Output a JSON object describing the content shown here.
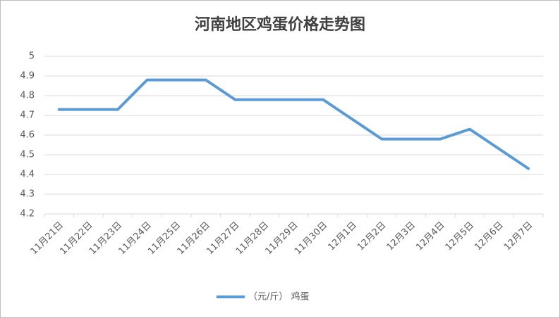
{
  "chart_data": {
    "type": "line",
    "title": "河南地区鸡蛋价格走势图",
    "categories": [
      "11月21日",
      "11月22日",
      "11月23日",
      "11月24日",
      "11月25日",
      "11月26日",
      "11月27日",
      "11月28日",
      "11月29日",
      "11月30日",
      "12月1日",
      "12月2日",
      "12月3日",
      "12月4日",
      "12月5日",
      "12月6日",
      "12月7日"
    ],
    "series": [
      {
        "name": "（元/斤） 鸡蛋",
        "color": "#5b9bd5",
        "values": [
          4.73,
          4.73,
          4.73,
          4.88,
          4.88,
          4.88,
          4.78,
          4.78,
          4.78,
          4.78,
          4.68,
          4.58,
          4.58,
          4.58,
          4.63,
          4.53,
          4.43
        ]
      }
    ],
    "ylim": [
      4.2,
      5
    ],
    "yticks": [
      4.2,
      4.3,
      4.4,
      4.5,
      4.6,
      4.7,
      4.8,
      4.9,
      5
    ],
    "grid": true,
    "legend": "bottom"
  }
}
